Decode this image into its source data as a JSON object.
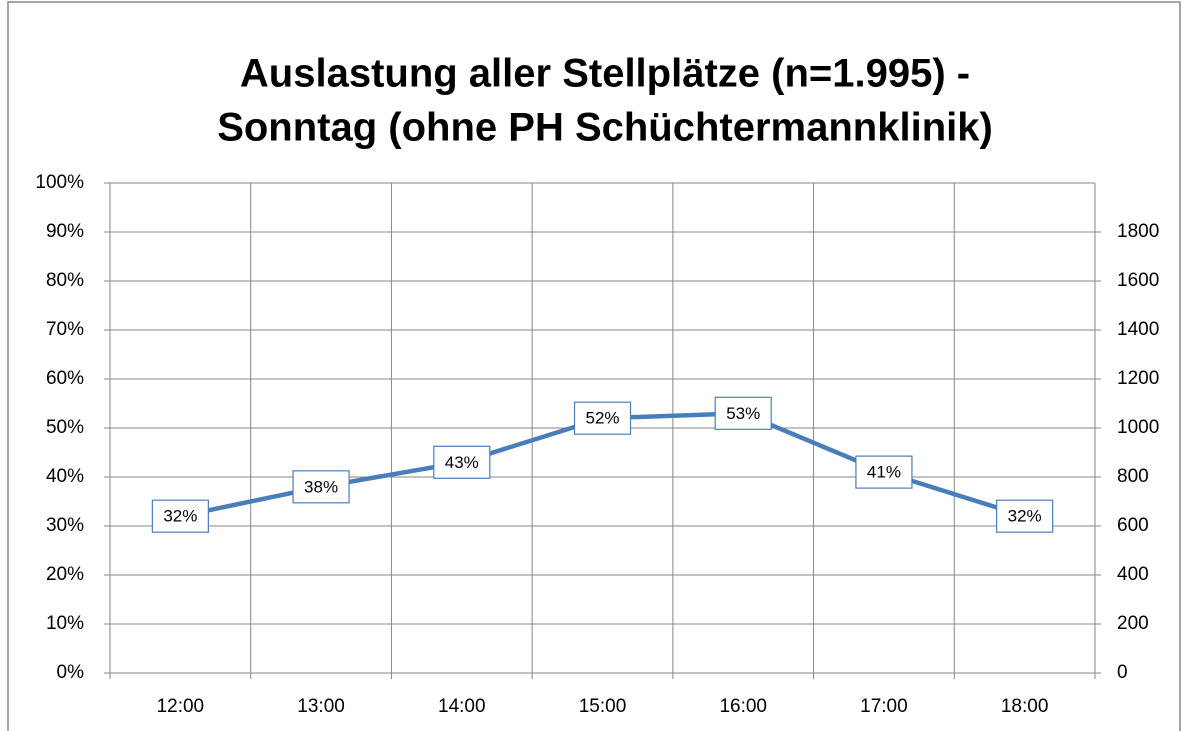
{
  "chart_data": {
    "type": "line",
    "title": [
      "Auslastung aller Stellplätze (n=1.995) -",
      "Sonntag (ohne PH Schüchtermannklinik)"
    ],
    "categories": [
      "12:00",
      "13:00",
      "14:00",
      "15:00",
      "16:00",
      "17:00",
      "18:00"
    ],
    "series": [
      {
        "color": "#4a7ebb",
        "values": [
          32,
          38,
          43,
          52,
          53,
          41,
          32
        ],
        "value_labels": [
          "32%",
          "38%",
          "43%",
          "52%",
          "53%",
          "41%",
          "32%"
        ]
      }
    ],
    "ylim": [
      0,
      100
    ],
    "yticks": [
      {
        "value": 0,
        "label": "0%"
      },
      {
        "value": 10,
        "label": "10%"
      },
      {
        "value": 20,
        "label": "20%"
      },
      {
        "value": 30,
        "label": "30%"
      },
      {
        "value": 40,
        "label": "40%"
      },
      {
        "value": 50,
        "label": "50%"
      },
      {
        "value": 60,
        "label": "60%"
      },
      {
        "value": 70,
        "label": "70%"
      },
      {
        "value": 80,
        "label": "80%"
      },
      {
        "value": 90,
        "label": "90%"
      },
      {
        "value": 100,
        "label": "100%"
      }
    ],
    "y2lim": [
      0,
      2000
    ],
    "y2ticks": [
      0,
      200,
      400,
      600,
      800,
      1000,
      1200,
      1400,
      1600,
      1800
    ],
    "grid": true
  }
}
